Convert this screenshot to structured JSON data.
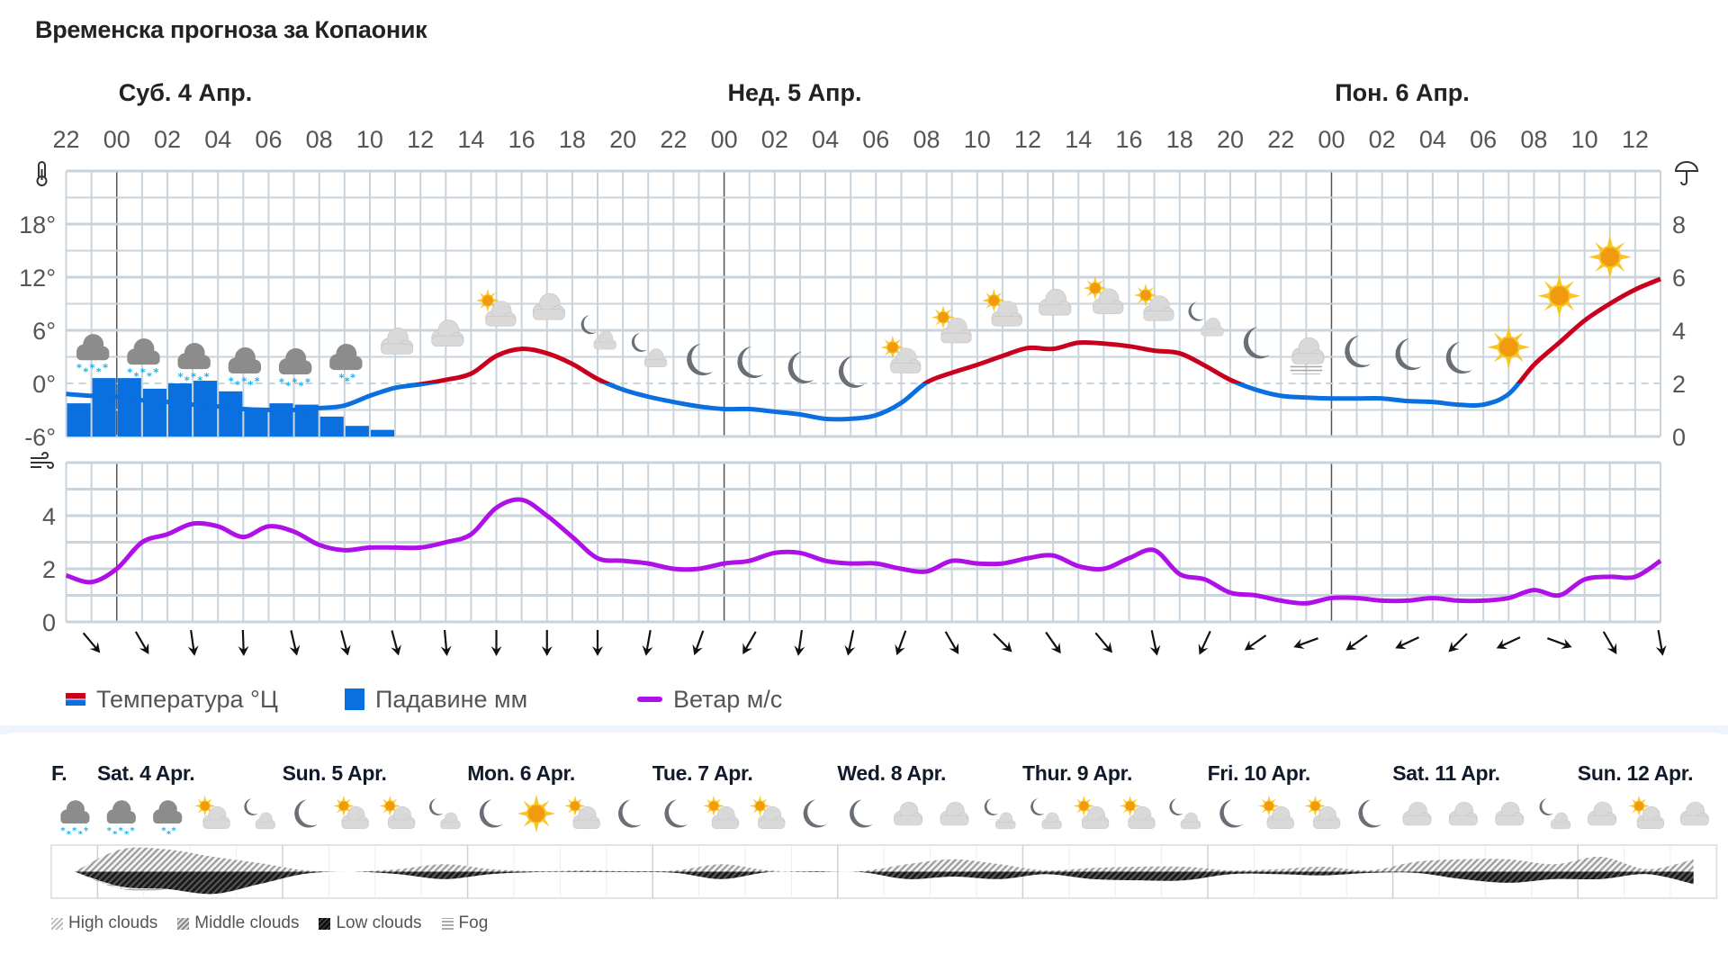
{
  "title": "Временска прогноза за Копаоник",
  "day_labels": [
    "Суб. 4 Апр.",
    "Нед. 5 Апр.",
    "Пон. 6 Апр."
  ],
  "hour_ticks": [
    "22",
    "00",
    "02",
    "04",
    "06",
    "08",
    "10",
    "12",
    "14",
    "16",
    "18",
    "20",
    "22",
    "00",
    "02",
    "04",
    "06",
    "08",
    "10",
    "12",
    "14",
    "16",
    "18",
    "20",
    "22",
    "00",
    "02",
    "04",
    "06",
    "08",
    "10",
    "12"
  ],
  "legend": {
    "temperature": "Температура °Ц",
    "precipitation": "Падавине мм",
    "wind": "Ветар м/с"
  },
  "colors": {
    "temp_above_zero": "#c8001e",
    "temp_below_zero": "#0a6fdf",
    "precipitation": "#0a6fdf",
    "wind": "#b010e8"
  },
  "icons": {
    "temp_axis": "thermometer-icon",
    "precip_axis": "umbrella-icon",
    "wind_axis": "wind-icon"
  },
  "chart_data": [
    {
      "type": "line",
      "x_start": "22:00",
      "x_step_hours": 1,
      "temp_ylim": [
        -6,
        24
      ],
      "temp_ticks": [
        "18°",
        "12°",
        "6°",
        "0°",
        "-6°"
      ],
      "temp_tick_values": [
        18,
        12,
        6,
        0,
        -6
      ],
      "precip_ylim": [
        0,
        10
      ],
      "precip_ticks": [
        "8",
        "6",
        "4",
        "2",
        "0"
      ],
      "precip_tick_values": [
        8,
        6,
        4,
        2,
        0
      ],
      "grid": true,
      "series": [
        {
          "name": "Температура °Ц",
          "type": "line",
          "values": [
            -1.2,
            -1.4,
            -1.5,
            -1.9,
            -2.1,
            -2.4,
            -2.6,
            -2.9,
            -3,
            -3,
            -2.8,
            -2.5,
            -1.4,
            -0.5,
            -0.1,
            0.4,
            1.1,
            3.1,
            3.9,
            3.4,
            2.2,
            0.5,
            -0.7,
            -1.5,
            -2.1,
            -2.6,
            -2.9,
            -2.9,
            -3.2,
            -3.5,
            -4,
            -4,
            -3.6,
            -2.2,
            0.1,
            1.2,
            2.1,
            3.1,
            4,
            3.9,
            4.6,
            4.5,
            4.2,
            3.7,
            3.4,
            2,
            0.4,
            -0.7,
            -1.4,
            -1.6,
            -1.7,
            -1.7,
            -1.7,
            -2,
            -2.1,
            -2.4,
            -2.4,
            -1.2,
            2.1,
            4.6,
            7.1,
            9,
            10.6,
            11.8
          ]
        },
        {
          "name": "Падавине мм",
          "type": "bar",
          "values": [
            1.25,
            2.2,
            2.2,
            1.8,
            2.0,
            2.1,
            1.7,
            1.0,
            1.25,
            1.2,
            0.75,
            0.4,
            0.25
          ]
        }
      ],
      "weather_symbols": [
        {
          "hour_index": 1,
          "icon": "snow"
        },
        {
          "hour_index": 3,
          "icon": "snow"
        },
        {
          "hour_index": 5,
          "icon": "snow"
        },
        {
          "hour_index": 7,
          "icon": "snow"
        },
        {
          "hour_index": 9,
          "icon": "snow"
        },
        {
          "hour_index": 11,
          "icon": "light-snow"
        },
        {
          "hour_index": 13,
          "icon": "cloud"
        },
        {
          "hour_index": 15,
          "icon": "cloud"
        },
        {
          "hour_index": 17,
          "icon": "partly-sunny"
        },
        {
          "hour_index": 19,
          "icon": "cloud"
        },
        {
          "hour_index": 21,
          "icon": "night-cloud"
        },
        {
          "hour_index": 23,
          "icon": "night-cloud"
        },
        {
          "hour_index": 25,
          "icon": "moon"
        },
        {
          "hour_index": 27,
          "icon": "moon"
        },
        {
          "hour_index": 29,
          "icon": "moon"
        },
        {
          "hour_index": 31,
          "icon": "moon"
        },
        {
          "hour_index": 33,
          "icon": "partly-sunny"
        },
        {
          "hour_index": 35,
          "icon": "partly-sunny"
        },
        {
          "hour_index": 37,
          "icon": "partly-sunny"
        },
        {
          "hour_index": 39,
          "icon": "cloud"
        },
        {
          "hour_index": 41,
          "icon": "partly-sunny"
        },
        {
          "hour_index": 43,
          "icon": "partly-sunny"
        },
        {
          "hour_index": 45,
          "icon": "night-cloud"
        },
        {
          "hour_index": 47,
          "icon": "moon"
        },
        {
          "hour_index": 49,
          "icon": "fog"
        },
        {
          "hour_index": 51,
          "icon": "moon"
        },
        {
          "hour_index": 53,
          "icon": "moon"
        },
        {
          "hour_index": 55,
          "icon": "moon"
        },
        {
          "hour_index": 57,
          "icon": "sun"
        },
        {
          "hour_index": 59,
          "icon": "sun"
        },
        {
          "hour_index": 61,
          "icon": "sun"
        }
      ]
    },
    {
      "type": "line",
      "name": "Ветар м/с",
      "x_start": "22:00",
      "x_step_hours": 1,
      "ylim": [
        0,
        6
      ],
      "ticks": [
        "4",
        "2",
        "0"
      ],
      "tick_values": [
        4,
        2,
        0
      ],
      "grid": true,
      "values": [
        1.75,
        1.5,
        2.0,
        3.0,
        3.3,
        3.7,
        3.6,
        3.2,
        3.6,
        3.4,
        2.9,
        2.7,
        2.8,
        2.8,
        2.8,
        3.0,
        3.3,
        4.3,
        4.6,
        4.0,
        3.2,
        2.4,
        2.3,
        2.2,
        2.0,
        2.0,
        2.2,
        2.3,
        2.6,
        2.6,
        2.3,
        2.2,
        2.2,
        2.0,
        1.9,
        2.3,
        2.2,
        2.2,
        2.4,
        2.5,
        2.1,
        2.0,
        2.4,
        2.7,
        1.8,
        1.6,
        1.1,
        1.0,
        0.8,
        0.7,
        0.9,
        0.9,
        0.8,
        0.8,
        0.9,
        0.8,
        0.8,
        0.9,
        1.2,
        1.0,
        1.6,
        1.7,
        1.7,
        2.3
      ],
      "wind_direction_bearings_deg": [
        140,
        150,
        172,
        178,
        167,
        165,
        165,
        175,
        180,
        180,
        180,
        190,
        200,
        210,
        188,
        192,
        200,
        150,
        135,
        145,
        140,
        168,
        205,
        235,
        250,
        235,
        245,
        225,
        245,
        110,
        150,
        170
      ]
    }
  ],
  "longterm": {
    "first_label": "F.",
    "days": [
      "Sat. 4 Apr.",
      "Sun. 5 Apr.",
      "Mon. 6 Apr.",
      "Tue. 7 Apr.",
      "Wed. 8 Apr.",
      "Thur. 9 Apr.",
      "Fri. 10 Apr.",
      "Sat. 11 Apr.",
      "Sun. 12 Apr."
    ],
    "icons": [
      "snow",
      "snow",
      "light-snow",
      "partly-sunny",
      "night-cloud",
      "moon",
      "partly-sunny",
      "partly-sunny",
      "night-cloud",
      "moon",
      "sun",
      "partly-sunny",
      "moon",
      "moon",
      "partly-sunny",
      "partly-sunny",
      "moon",
      "moon",
      "cloud",
      "cloud",
      "night-cloud",
      "night-cloud",
      "partly-sunny",
      "partly-sunny",
      "night-cloud",
      "moon",
      "partly-sunny",
      "partly-sunny",
      "moon",
      "cloud",
      "cloud",
      "cloud",
      "night-cloud",
      "cloud",
      "partly-sunny",
      "cloud"
    ],
    "cloud_upper": [
      0,
      0.9,
      0.9,
      0.6,
      0.35,
      0.05,
      0,
      0.1,
      0.3,
      0.1,
      0.02,
      0.05,
      0.02,
      0.05,
      0.3,
      0.05,
      0.02,
      0.02,
      0.3,
      0.5,
      0.3,
      0.05,
      0.15,
      0.2,
      0.2,
      0.05,
      0.1,
      0.2,
      0.05,
      0.4,
      0.5,
      0.5,
      0.3,
      0.6,
      0.1,
      0.5
    ],
    "cloud_low": [
      0,
      0.6,
      0.7,
      0.9,
      0.5,
      0.08,
      0,
      0.1,
      0.3,
      0.1,
      0.02,
      0.02,
      0.02,
      0.05,
      0.3,
      0.02,
      0.02,
      0.02,
      0.3,
      0.2,
      0.3,
      0.1,
      0.3,
      0.35,
      0.35,
      0.1,
      0.1,
      0.15,
      0.05,
      0.05,
      0.3,
      0.45,
      0.3,
      0.3,
      0.1,
      0.5
    ],
    "fog": [
      0,
      0.7,
      0.7,
      0,
      0,
      0,
      0,
      0,
      0.15,
      0,
      0,
      0,
      0,
      0,
      0,
      0,
      0,
      0,
      0,
      0,
      0,
      0,
      0,
      0,
      0,
      0,
      0,
      0,
      0,
      0,
      0,
      0,
      0,
      0,
      0,
      0
    ],
    "legend": [
      "High clouds",
      "Middle clouds",
      "Low clouds",
      "Fog"
    ]
  }
}
